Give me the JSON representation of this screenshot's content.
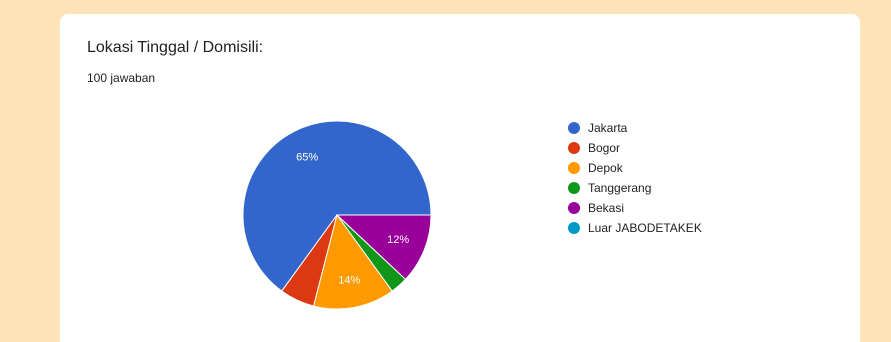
{
  "form": {
    "question": "Lokasi Tinggal / Domisili:",
    "responses": "100 jawaban"
  },
  "chart_data": {
    "type": "pie",
    "categories": [
      "Jakarta",
      "Bogor",
      "Depok",
      "Tanggerang",
      "Bekasi",
      "Luar JABODETAKEK"
    ],
    "values": [
      65,
      6,
      14,
      3,
      12,
      0
    ],
    "value_labels": [
      "65%",
      "",
      "14%",
      "",
      "12%",
      ""
    ],
    "colors": [
      "#3366cc",
      "#dc3912",
      "#ff9900",
      "#109618",
      "#990099",
      "#0099c6"
    ],
    "legend_position": "right"
  }
}
